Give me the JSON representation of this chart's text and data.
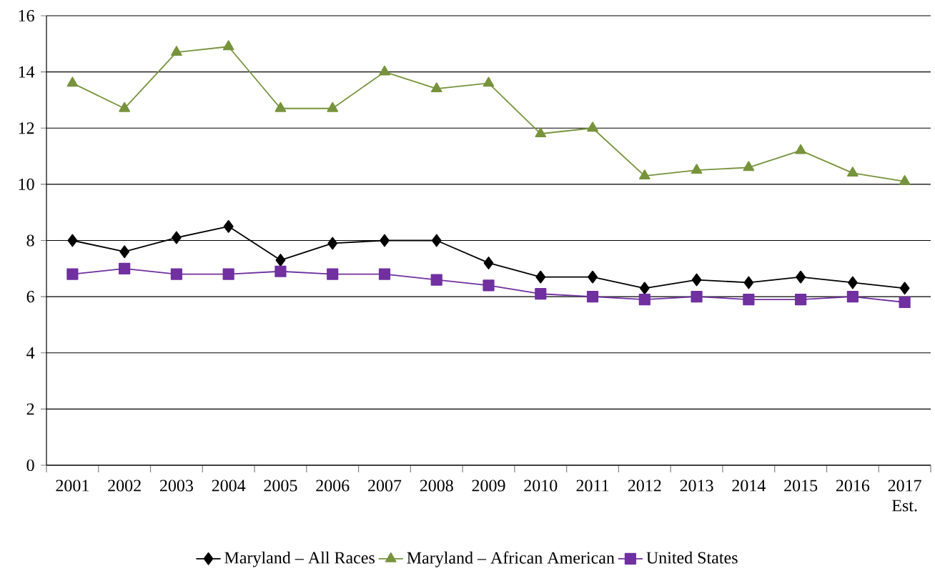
{
  "chart_data": {
    "type": "line",
    "categories": [
      "2001",
      "2002",
      "2003",
      "2004",
      "2005",
      "2006",
      "2007",
      "2008",
      "2009",
      "2010",
      "2011",
      "2012",
      "2013",
      "2014",
      "2015",
      "2016",
      "2017 Est."
    ],
    "series": [
      {
        "name": "Maryland – All Races",
        "color": "#000000",
        "marker": "diamond",
        "values": [
          8.0,
          7.6,
          8.1,
          8.5,
          7.3,
          7.9,
          8.0,
          8.0,
          7.2,
          6.7,
          6.7,
          6.3,
          6.6,
          6.5,
          6.7,
          6.5,
          6.3
        ]
      },
      {
        "name": "Maryland – African American",
        "color": "#77933c",
        "marker": "triangle",
        "values": [
          13.6,
          12.7,
          14.7,
          14.9,
          12.7,
          12.7,
          14.0,
          13.4,
          13.6,
          11.8,
          12.0,
          10.3,
          10.5,
          10.6,
          11.2,
          10.4,
          10.1
        ]
      },
      {
        "name": "United States",
        "color": "#7030a0",
        "marker": "square",
        "values": [
          6.8,
          7.0,
          6.8,
          6.8,
          6.9,
          6.8,
          6.8,
          6.6,
          6.4,
          6.1,
          6.0,
          5.9,
          6.0,
          5.9,
          5.9,
          6.0,
          5.8
        ]
      }
    ],
    "ylim": [
      0,
      16
    ],
    "yticks": [
      0,
      2,
      4,
      6,
      8,
      10,
      12,
      14,
      16
    ],
    "grid": "y",
    "legend": "bottom"
  }
}
